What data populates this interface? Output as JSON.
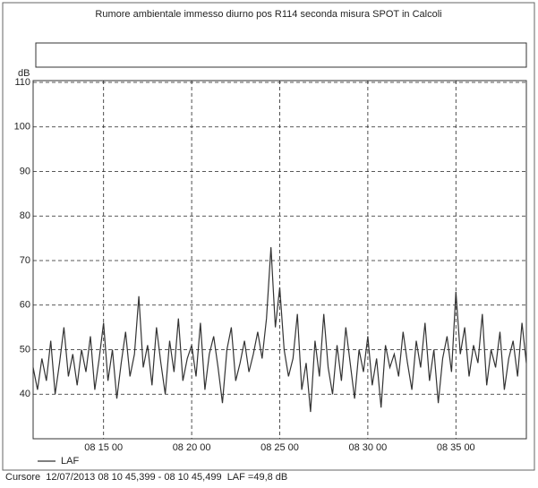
{
  "chart_data": {
    "type": "line",
    "title": "Rumore ambientale immesso diurno pos R114 seconda misura SPOT in Calcoli",
    "y_label": "dB",
    "xlim": [
      11,
      39
    ],
    "xticks": [
      {
        "value": 15,
        "label": "08 15 00"
      },
      {
        "value": 20,
        "label": "08 20 00"
      },
      {
        "value": 25,
        "label": "08 25 00"
      },
      {
        "value": 30,
        "label": "08 30 00"
      },
      {
        "value": 35,
        "label": "08 35 00"
      }
    ],
    "ylim": [
      30,
      110
    ],
    "yticks": [
      40,
      50,
      60,
      70,
      80,
      90,
      100,
      110
    ],
    "grid": true,
    "x": [
      11,
      11.25,
      11.5,
      11.75,
      12,
      12.25,
      12.5,
      12.75,
      13,
      13.25,
      13.5,
      13.75,
      14,
      14.25,
      14.5,
      14.75,
      15,
      15.25,
      15.5,
      15.75,
      16,
      16.25,
      16.5,
      16.75,
      17,
      17.25,
      17.5,
      17.75,
      18,
      18.25,
      18.5,
      18.75,
      19,
      19.25,
      19.5,
      19.75,
      20,
      20.25,
      20.5,
      20.75,
      21,
      21.25,
      21.5,
      21.75,
      22,
      22.25,
      22.5,
      22.75,
      23,
      23.25,
      23.5,
      23.75,
      24,
      24.25,
      24.5,
      24.75,
      25,
      25.25,
      25.5,
      25.75,
      26,
      26.25,
      26.5,
      26.75,
      27,
      27.25,
      27.5,
      27.75,
      28,
      28.25,
      28.5,
      28.75,
      29,
      29.25,
      29.5,
      29.75,
      30,
      30.25,
      30.5,
      30.75,
      31,
      31.25,
      31.5,
      31.75,
      32,
      32.25,
      32.5,
      32.75,
      33,
      33.25,
      33.5,
      33.75,
      34,
      34.25,
      34.5,
      34.75,
      35,
      35.25,
      35.5,
      35.75,
      36,
      36.25,
      36.5,
      36.75,
      37,
      37.25,
      37.5,
      37.75,
      38,
      38.25,
      38.5,
      38.75,
      39
    ],
    "series": [
      {
        "name": "LAF",
        "color": "#333333",
        "values": [
          46,
          41,
          48,
          43,
          52,
          40,
          47,
          55,
          44,
          49,
          42,
          50,
          45,
          53,
          41,
          48,
          56,
          43,
          50,
          39,
          47,
          54,
          44,
          49,
          62,
          46,
          51,
          42,
          55,
          47,
          40,
          52,
          45,
          57,
          43,
          48,
          51,
          44,
          56,
          41,
          49,
          53,
          46,
          38,
          50,
          55,
          43,
          47,
          52,
          45,
          49,
          54,
          48,
          57,
          73,
          55,
          64,
          50,
          44,
          48,
          58,
          41,
          47,
          36,
          52,
          44,
          58,
          46,
          40,
          51,
          43,
          55,
          47,
          39,
          50,
          45,
          53,
          42,
          48,
          37,
          51,
          46,
          49,
          44,
          54,
          47,
          41,
          52,
          46,
          56,
          43,
          50,
          38,
          48,
          53,
          45,
          63,
          49,
          55,
          44,
          51,
          47,
          58,
          42,
          50,
          46,
          54,
          41,
          48,
          52,
          44,
          56,
          47
        ]
      }
    ],
    "cursor_text": "Cursore  12/07/2013 08 10 45,399 - 08 10 45,499  LAF =49,8 dB"
  }
}
